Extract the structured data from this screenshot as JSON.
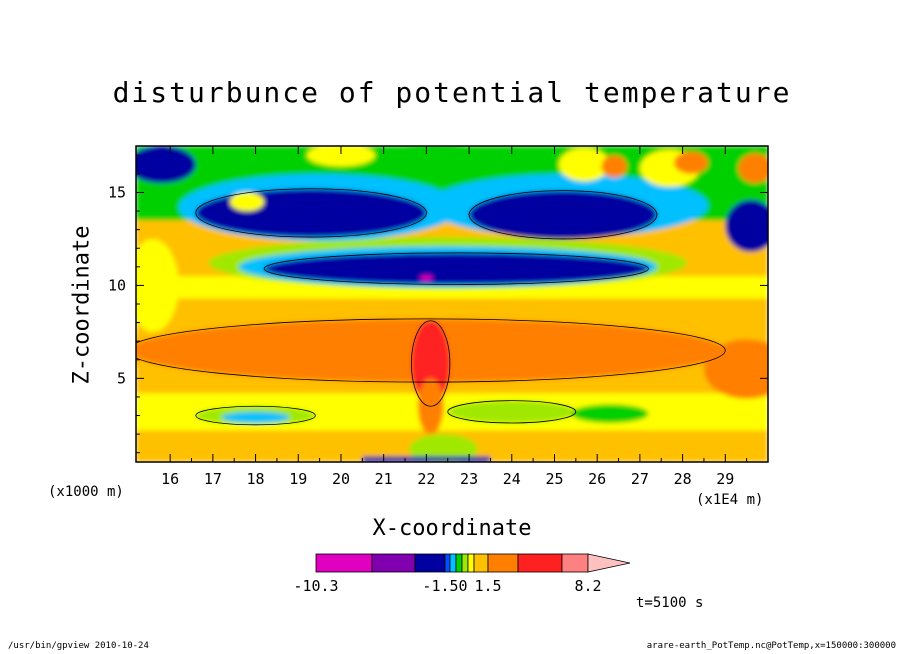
{
  "chart_data": {
    "type": "heatmap",
    "title": "disturbunce of potential temperature",
    "xlabel": "X-coordinate",
    "ylabel": "Z-coordinate",
    "x_unit_label": "(x1E4 m)",
    "y_unit_label": "(x1000 m)",
    "xlim": [
      15.2,
      30
    ],
    "ylim": [
      0.5,
      17.5
    ],
    "x_ticks": [
      "16",
      "17",
      "18",
      "19",
      "20",
      "21",
      "22",
      "23",
      "24",
      "25",
      "26",
      "27",
      "28",
      "29"
    ],
    "y_ticks": [
      "5",
      "10",
      "15"
    ],
    "colorbar": {
      "labels": [
        "-10.3",
        "-1.50",
        "1.5",
        "8.2"
      ],
      "colors": [
        "#e000c0",
        "#8000b0",
        "#0000a0",
        "#0050ff",
        "#00c0ff",
        "#00d000",
        "#a0e800",
        "#ffff00",
        "#ffc000",
        "#ff8000",
        "#ff2020",
        "#ff8080",
        "#ffc0c0"
      ]
    },
    "time_label": "t=5100 s",
    "features": [
      {
        "desc": "warm layer",
        "z_range": [
          3,
          9
        ],
        "x_range": [
          16,
          29.8
        ],
        "level": "orange"
      },
      {
        "desc": "warm core",
        "x": 22.1,
        "z_range": [
          3.5,
          8
        ],
        "level": "red"
      },
      {
        "desc": "cold band",
        "z_range": [
          9.5,
          12.5
        ],
        "x_range": [
          18,
          28
        ],
        "level": "dark-blue"
      },
      {
        "desc": "cold lobes",
        "z_range": [
          12,
          16.5
        ],
        "x_range": [
          15.5,
          28.5
        ],
        "level": "dark-blue"
      }
    ]
  },
  "footer": {
    "left": "/usr/bin/gpview  2010-10-24",
    "right": "arare-earth_PotTemp.nc@PotTemp,x=150000:300000"
  }
}
